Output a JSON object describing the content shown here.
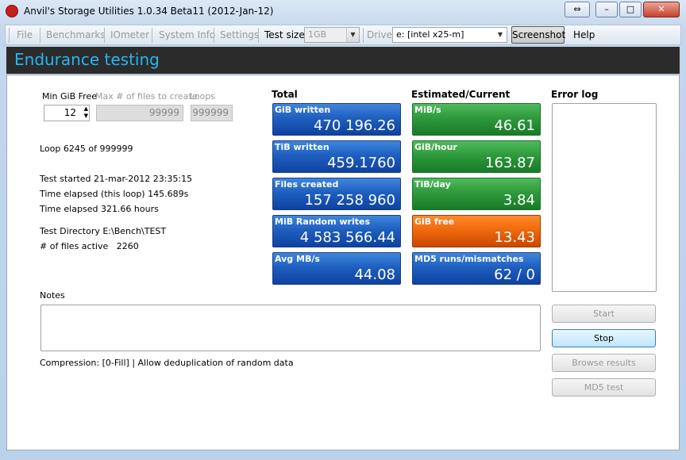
{
  "window": {
    "title": "Anvil's Storage Utilities 1.0.34 Beta11 (2012-Jan-12)"
  },
  "menu": {
    "items": [
      "File",
      "Benchmarks",
      "IOmeter",
      "System Info",
      "Settings"
    ],
    "test_size_label": "Test size",
    "test_size": "1GB",
    "drive_label": "Drive",
    "drive": "e: [intel x25-m]",
    "screenshot": "Screenshot",
    "help": "Help"
  },
  "header": {
    "title": "Endurance testing"
  },
  "settings": {
    "fields": [
      {
        "label": "Min GiB Free",
        "value": "12"
      },
      {
        "label": "Max # of files to create",
        "value": "99999"
      },
      {
        "label": "Loops",
        "value": "999999"
      }
    ]
  },
  "status": {
    "lines": [
      "Loop 6245 of 999999",
      "Test started 21-mar-2012 23:35:15",
      "Time elapsed (this loop) 145.689s",
      "Time elapsed 321.66 hours",
      "Test Directory E:\\Bench\\TEST",
      "# of files active   2260"
    ]
  },
  "total": {
    "title": "Total",
    "tiles": [
      {
        "label": "GiB written",
        "value": "470 196.26"
      },
      {
        "label": "TiB written",
        "value": "459.1760"
      },
      {
        "label": "Files created",
        "value": "157 258 960"
      },
      {
        "label": "MiB Random writes",
        "value": "4 583 566.44"
      },
      {
        "label": "Avg MB/s",
        "value": "44.08"
      }
    ]
  },
  "current": {
    "title": "Estimated/Current",
    "tiles": [
      {
        "label": "MiB/s",
        "value": "46.61"
      },
      {
        "label": "GiB/hour",
        "value": "163.87"
      },
      {
        "label": "TiB/day",
        "value": "3.84"
      },
      {
        "label": "GiB free",
        "value": "13.43"
      },
      {
        "label": "MD5 runs/mismatches",
        "value": "62 / 0"
      }
    ]
  },
  "error_log": {
    "title": "Error log"
  },
  "notes": {
    "label": "Notes"
  },
  "compression": "Compression: [0-Fill] | Allow deduplication of random data",
  "buttons": [
    "Start",
    "Stop",
    "Browse results",
    "MD5 test"
  ]
}
